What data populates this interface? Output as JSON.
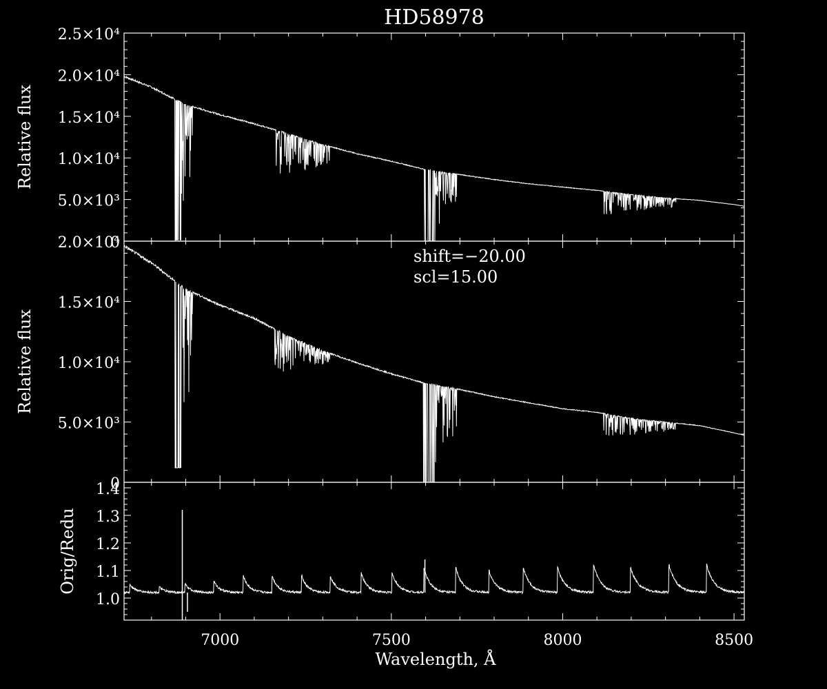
{
  "colors": {
    "background": "#000000",
    "foreground": "#ffffff"
  },
  "chart_data": [
    {
      "type": "line",
      "title": "HD58978",
      "xlabel": "",
      "ylabel": "Relative flux",
      "xlim": [
        6720,
        8530
      ],
      "ylim": [
        0,
        25000
      ],
      "y_tick_labels": [
        "0",
        "5.0×10³",
        "1.0×10⁴",
        "1.5×10⁴",
        "2.0×10⁴",
        "2.5×10⁴"
      ],
      "y_tick_values": [
        0,
        5000,
        10000,
        15000,
        20000,
        25000
      ],
      "annotations": [],
      "continuum": {
        "x": [
          6720,
          6800,
          6900,
          7000,
          7100,
          7200,
          7300,
          7400,
          7500,
          7600,
          7700,
          7800,
          7900,
          8000,
          8100,
          8200,
          8300,
          8400,
          8500,
          8530
        ],
        "y": [
          19800,
          18500,
          16400,
          15200,
          14100,
          12900,
          11600,
          10500,
          9600,
          8600,
          8000,
          7400,
          6900,
          6500,
          6100,
          5600,
          5200,
          4900,
          4400,
          4200
        ]
      },
      "absorption_bands": [
        {
          "x0": 6868,
          "x1": 6920,
          "min_y": 100
        },
        {
          "x0": 7160,
          "x1": 7320,
          "min_y": 7000
        },
        {
          "x0": 7594,
          "x1": 7690,
          "min_y": 0
        },
        {
          "x0": 8120,
          "x1": 8330,
          "min_y": 3000
        }
      ]
    },
    {
      "type": "line",
      "xlabel": "",
      "ylabel": "Relative flux",
      "xlim": [
        6720,
        8530
      ],
      "ylim": [
        0,
        20000
      ],
      "y_tick_labels": [
        "0",
        "5.0×10³",
        "1.0×10⁴",
        "1.5×10⁴",
        "2.0×10⁴"
      ],
      "y_tick_values": [
        0,
        5000,
        10000,
        15000,
        20000
      ],
      "annotations": [
        "shift=−20.00",
        "scl=15.00"
      ],
      "continuum": {
        "x": [
          6720,
          6800,
          6900,
          7000,
          7100,
          7200,
          7300,
          7400,
          7500,
          7600,
          7700,
          7800,
          7900,
          8000,
          8100,
          8200,
          8300,
          8400,
          8500,
          8530
        ],
        "y": [
          19600,
          18200,
          16000,
          14700,
          13600,
          12100,
          10900,
          9900,
          9000,
          8200,
          7700,
          7100,
          6600,
          6100,
          5800,
          5300,
          5000,
          4700,
          4100,
          3900
        ]
      },
      "absorption_bands": [
        {
          "x0": 6868,
          "x1": 6920,
          "min_y": 1200
        },
        {
          "x0": 7160,
          "x1": 7320,
          "min_y": 8900
        },
        {
          "x0": 7594,
          "x1": 7690,
          "min_y": 0
        },
        {
          "x0": 8120,
          "x1": 8330,
          "min_y": 3600
        }
      ]
    },
    {
      "type": "line",
      "xlabel": "Wavelength, Å",
      "ylabel": "Orig/Redu",
      "xlim": [
        6720,
        8530
      ],
      "ylim": [
        0.92,
        1.42
      ],
      "x_tick_labels": [
        "7000",
        "7500",
        "8000",
        "8500"
      ],
      "x_tick_values": [
        7000,
        7500,
        8000,
        8500
      ],
      "y_tick_labels": [
        "1.0",
        "1.1",
        "1.2",
        "1.3",
        "1.4"
      ],
      "y_tick_values": [
        1.0,
        1.1,
        1.2,
        1.3,
        1.4
      ],
      "baseline": 1.02,
      "scallop_peaks": [
        {
          "x": 6737,
          "y": 1.05
        },
        {
          "x": 6823,
          "y": 1.04
        },
        {
          "x": 6898,
          "y": 1.05
        },
        {
          "x": 6982,
          "y": 1.06
        },
        {
          "x": 7068,
          "y": 1.08
        },
        {
          "x": 7152,
          "y": 1.08
        },
        {
          "x": 7238,
          "y": 1.08
        },
        {
          "x": 7322,
          "y": 1.08
        },
        {
          "x": 7412,
          "y": 1.09
        },
        {
          "x": 7502,
          "y": 1.09
        },
        {
          "x": 7595,
          "y": 1.11
        },
        {
          "x": 7688,
          "y": 1.11
        },
        {
          "x": 7785,
          "y": 1.1
        },
        {
          "x": 7885,
          "y": 1.11
        },
        {
          "x": 7985,
          "y": 1.11
        },
        {
          "x": 8090,
          "y": 1.12
        },
        {
          "x": 8198,
          "y": 1.11
        },
        {
          "x": 8310,
          "y": 1.12
        },
        {
          "x": 8420,
          "y": 1.12
        }
      ],
      "spikes": [
        {
          "x": 6890,
          "y": 1.32
        },
        {
          "x": 6890,
          "y": 0.92
        },
        {
          "x": 6905,
          "y": 0.95
        },
        {
          "x": 7598,
          "y": 1.14
        }
      ]
    }
  ]
}
